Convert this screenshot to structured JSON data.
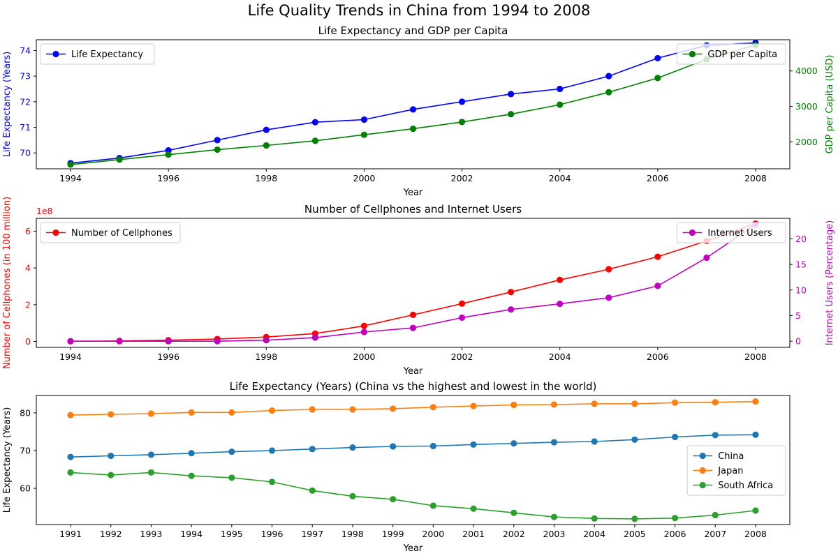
{
  "figure_title": "Life Quality Trends in China from 1994 to 2008",
  "chart_data": [
    {
      "type": "line",
      "title": "Life Expectancy and GDP per Capita",
      "xlabel": "Year",
      "x": [
        1994,
        1995,
        1996,
        1997,
        1998,
        1999,
        2000,
        2001,
        2002,
        2003,
        2004,
        2005,
        2006,
        2007,
        2008
      ],
      "x_ticks": [
        1994,
        1996,
        1998,
        2000,
        2002,
        2004,
        2006,
        2008
      ],
      "left_axis": {
        "label": "Life Expectancy (Years)",
        "color": "#0000ff",
        "ticks": [
          70,
          71,
          72,
          73,
          74
        ],
        "tick_labels": [
          "70",
          "71",
          "72",
          "73",
          "74"
        ],
        "ylim": [
          69.38,
          74.42
        ]
      },
      "right_axis": {
        "label": "GDP per Capita (USD)",
        "color": "#008000",
        "ticks": [
          2000,
          3000,
          4000
        ],
        "tick_labels": [
          "2000",
          "3000",
          "4000"
        ],
        "ylim": [
          1240,
          4880
        ]
      },
      "series": [
        {
          "name": "Life Expectancy",
          "axis": "left",
          "color": "#0000ff",
          "values": [
            69.6,
            69.8,
            70.1,
            70.5,
            70.9,
            71.2,
            71.3,
            71.7,
            72.0,
            72.3,
            72.5,
            73.0,
            73.7,
            74.2,
            74.3
          ]
        },
        {
          "name": "GDP per Capita",
          "axis": "right",
          "color": "#008000",
          "values": [
            1360,
            1500,
            1640,
            1780,
            1900,
            2030,
            2200,
            2370,
            2560,
            2780,
            3050,
            3400,
            3800,
            4330,
            4730
          ]
        }
      ],
      "legends": [
        {
          "position": "upper-left",
          "entries": [
            "Life Expectancy"
          ]
        },
        {
          "position": "upper-right",
          "entries": [
            "GDP per Capita"
          ]
        }
      ]
    },
    {
      "type": "line",
      "title": "Number of Cellphones and Internet Users",
      "xlabel": "Year",
      "x": [
        1994,
        1995,
        1996,
        1997,
        1998,
        1999,
        2000,
        2001,
        2002,
        2003,
        2004,
        2005,
        2006,
        2007,
        2008
      ],
      "x_ticks": [
        1994,
        1996,
        1998,
        2000,
        2002,
        2004,
        2006,
        2008
      ],
      "left_axis": {
        "label": "Number of Cellphones (in 100 million)",
        "color": "#ff0000",
        "offset_text": "1e8",
        "ticks": [
          0,
          200000000,
          400000000,
          600000000
        ],
        "tick_labels": [
          "0",
          "2",
          "4",
          "6"
        ],
        "ylim": [
          -32000000,
          670000000
        ]
      },
      "right_axis": {
        "label": "Internet Users (Percentage)",
        "color": "#bf00bf",
        "ticks": [
          0,
          5,
          10,
          15,
          20
        ],
        "tick_labels": [
          "0",
          "5",
          "10",
          "15",
          "20"
        ],
        "ylim": [
          -1.2,
          24.0
        ]
      },
      "series": [
        {
          "name": "Number of Cellphones",
          "axis": "left",
          "color": "#ff0000",
          "values": [
            1000000,
            3000000,
            7000000,
            13000000,
            24000000,
            43000000,
            85000000,
            145000000,
            206000000,
            269000000,
            335000000,
            393000000,
            461000000,
            547000000,
            641000000
          ]
        },
        {
          "name": "Internet Users",
          "axis": "right",
          "color": "#bf00bf",
          "values": [
            0.0,
            0.0,
            0.0,
            0.0,
            0.2,
            0.7,
            1.8,
            2.6,
            4.6,
            6.2,
            7.3,
            8.5,
            10.8,
            16.3,
            22.8
          ]
        }
      ],
      "legends": [
        {
          "position": "upper-left",
          "entries": [
            "Number of Cellphones"
          ]
        },
        {
          "position": "upper-right",
          "entries": [
            "Internet Users"
          ]
        }
      ]
    },
    {
      "type": "line",
      "title": "Life Expectancy (Years) (China vs the highest and lowest in the world)",
      "xlabel": "Year",
      "x": [
        1991,
        1992,
        1993,
        1994,
        1995,
        1996,
        1997,
        1998,
        1999,
        2000,
        2001,
        2002,
        2003,
        2004,
        2005,
        2006,
        2007,
        2008
      ],
      "x_ticks": [
        1991,
        1992,
        1993,
        1994,
        1995,
        1996,
        1997,
        1998,
        1999,
        2000,
        2001,
        2002,
        2003,
        2004,
        2005,
        2006,
        2007,
        2008
      ],
      "left_axis": {
        "label": "Life Expectancy (Years)",
        "color": "#000000",
        "ticks": [
          60,
          70,
          80
        ],
        "tick_labels": [
          "60",
          "70",
          "80"
        ],
        "ylim": [
          50.4,
          84.6
        ]
      },
      "series": [
        {
          "name": "China",
          "axis": "left",
          "color": "#1f77b4",
          "values": [
            68.3,
            68.6,
            68.9,
            69.3,
            69.7,
            70.0,
            70.4,
            70.8,
            71.1,
            71.2,
            71.6,
            71.9,
            72.2,
            72.4,
            72.9,
            73.6,
            74.1,
            74.2
          ]
        },
        {
          "name": "Japan",
          "axis": "left",
          "color": "#ff7f0e",
          "values": [
            79.4,
            79.6,
            79.8,
            80.1,
            80.1,
            80.6,
            80.9,
            80.9,
            81.1,
            81.5,
            81.8,
            82.1,
            82.2,
            82.4,
            82.4,
            82.7,
            82.8,
            83.0
          ]
        },
        {
          "name": "South Africa",
          "axis": "left",
          "color": "#2ca02c",
          "values": [
            64.2,
            63.5,
            64.2,
            63.3,
            62.8,
            61.7,
            59.4,
            57.9,
            57.1,
            55.4,
            54.6,
            53.5,
            52.4,
            52.0,
            51.9,
            52.1,
            52.9,
            54.1
          ]
        }
      ],
      "legends": [
        {
          "position": "center-right",
          "entries": [
            "China",
            "Japan",
            "South Africa"
          ]
        }
      ]
    }
  ]
}
